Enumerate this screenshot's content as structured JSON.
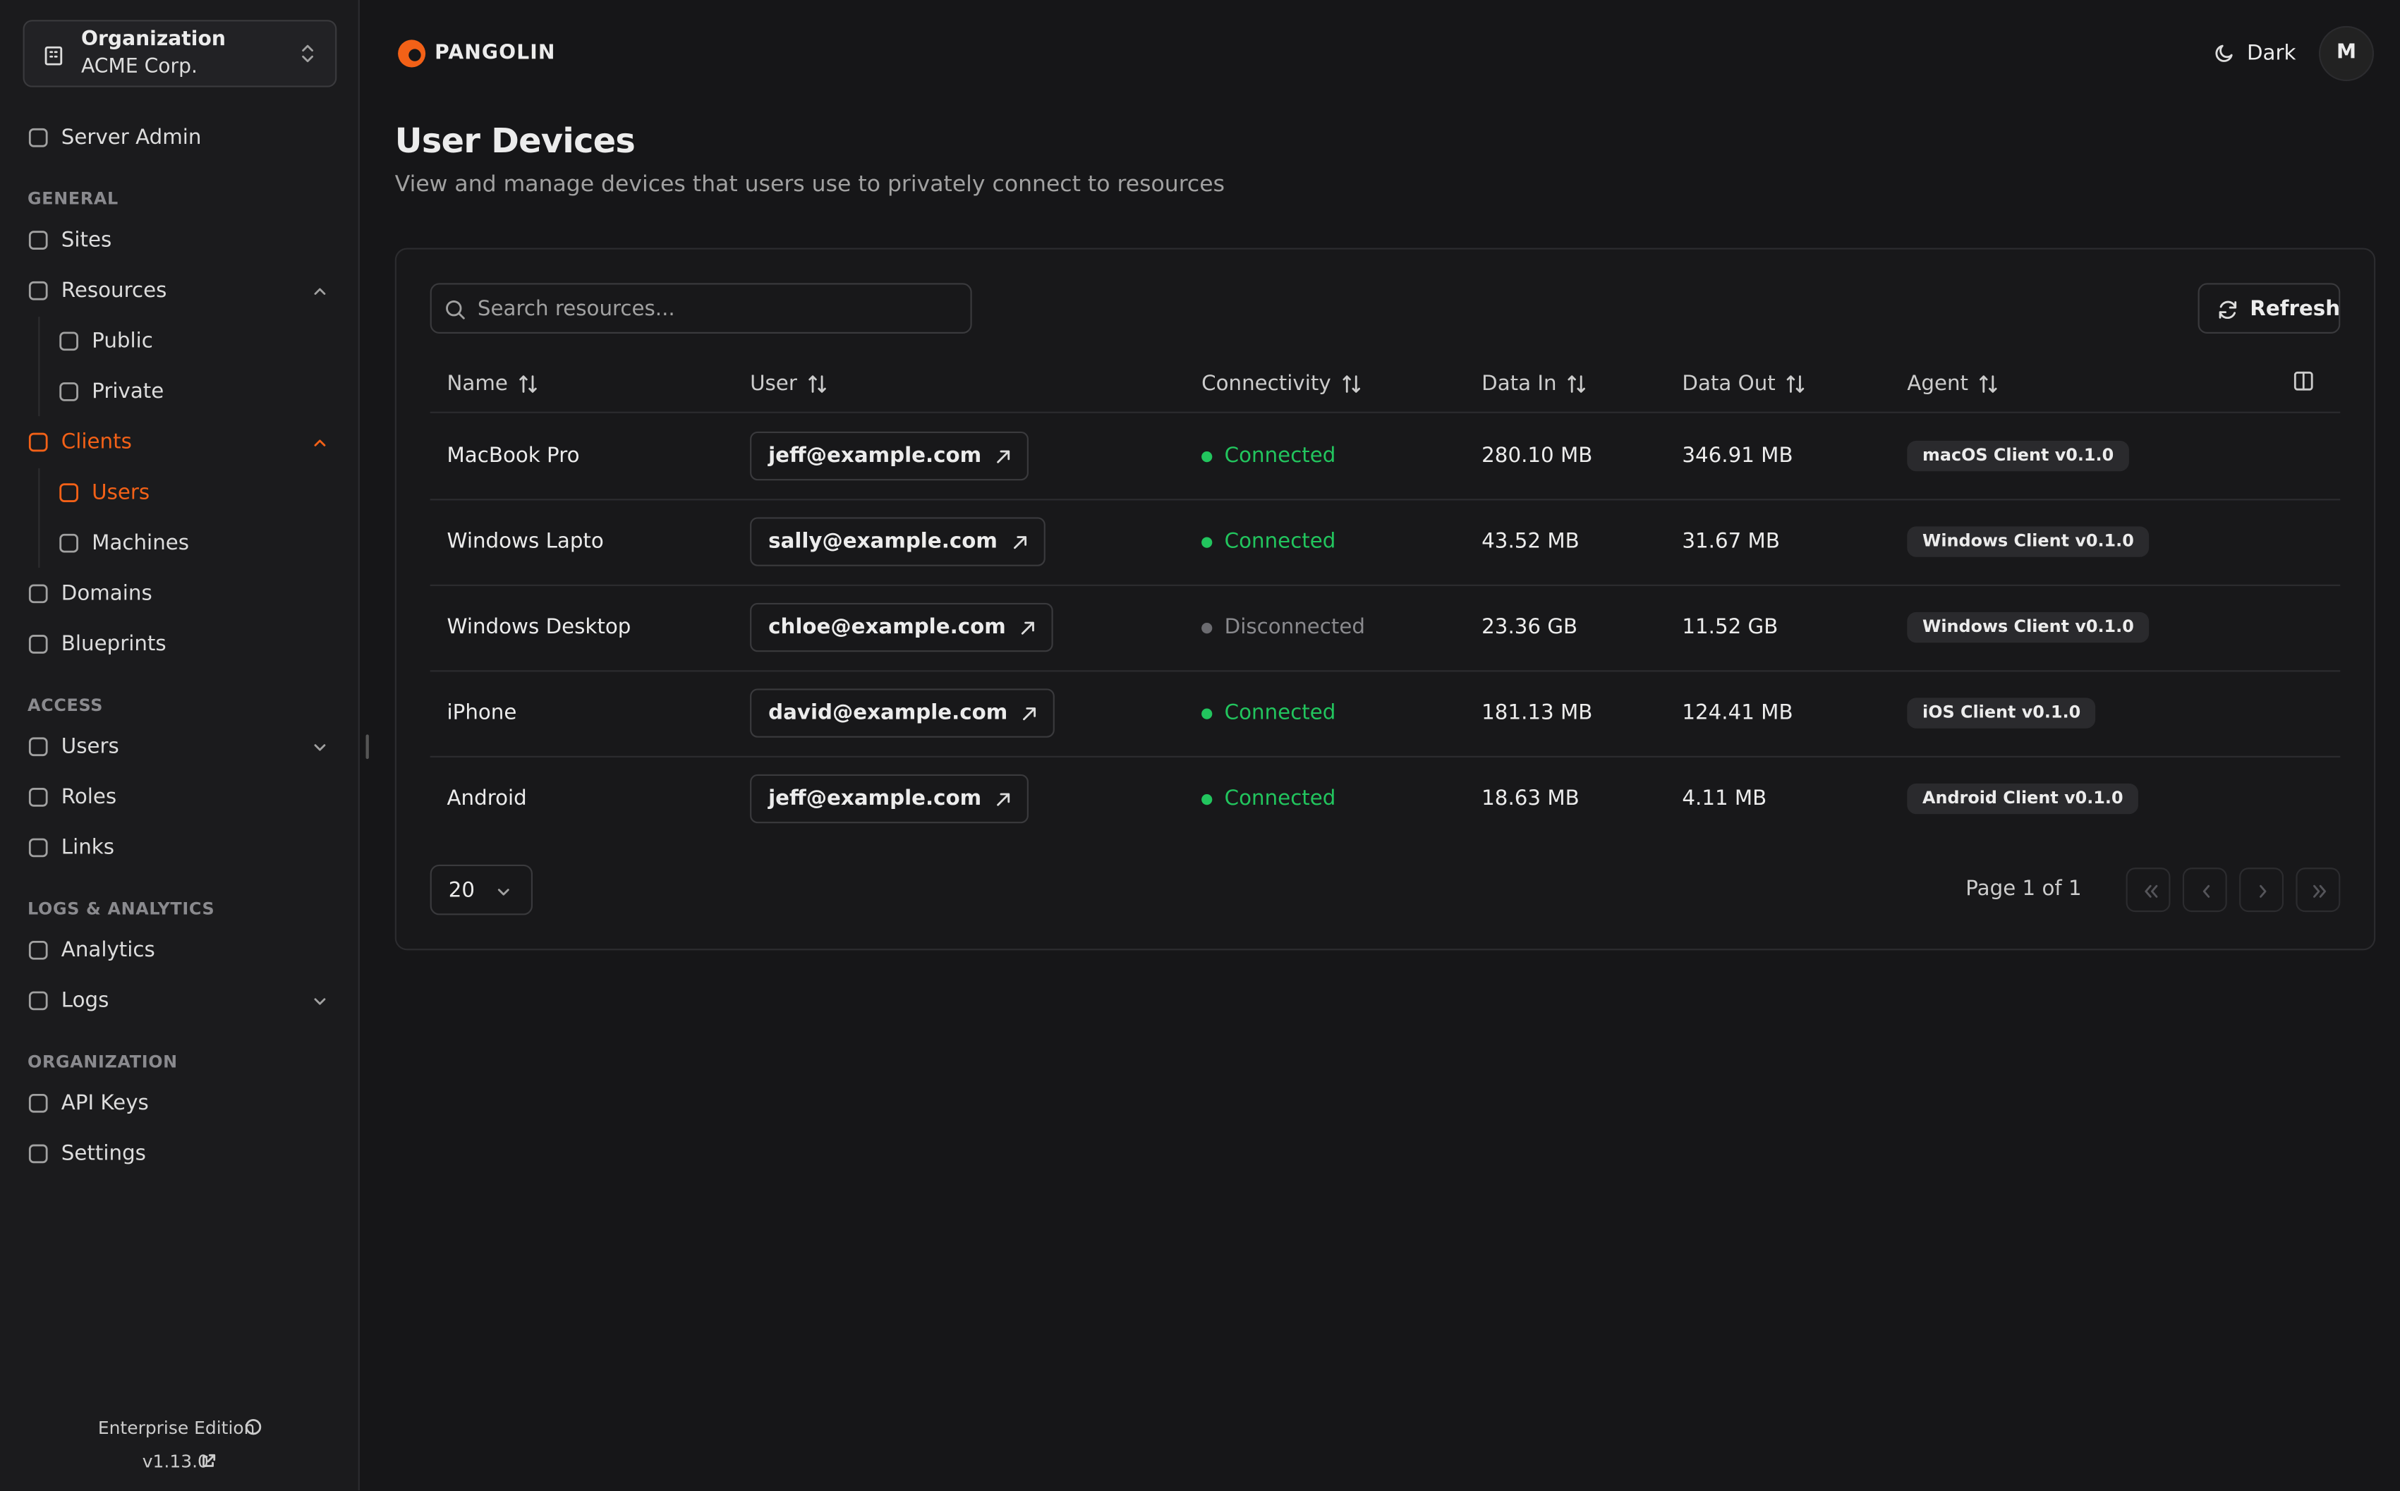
{
  "sidebar": {
    "org_label": "Organization",
    "org_name": "ACME Corp.",
    "server_admin": "Server Admin",
    "sections": [
      {
        "title": "GENERAL",
        "items": [
          {
            "label": "Sites"
          },
          {
            "label": "Resources",
            "children": [
              {
                "label": "Public"
              },
              {
                "label": "Private"
              }
            ]
          },
          {
            "label": "Clients",
            "active": true,
            "children": [
              {
                "label": "Users",
                "active": true
              },
              {
                "label": "Machines"
              }
            ]
          },
          {
            "label": "Domains"
          },
          {
            "label": "Blueprints"
          }
        ]
      },
      {
        "title": "ACCESS",
        "items": [
          {
            "label": "Users"
          },
          {
            "label": "Roles"
          },
          {
            "label": "Links"
          }
        ]
      },
      {
        "title": "LOGS & ANALYTICS",
        "items": [
          {
            "label": "Analytics"
          },
          {
            "label": "Logs"
          }
        ]
      },
      {
        "title": "ORGANIZATION",
        "items": [
          {
            "label": "API Keys"
          },
          {
            "label": "Settings"
          }
        ]
      }
    ],
    "edition": "Enterprise Edition",
    "version": "v1.13.0"
  },
  "header": {
    "brand": "PANGOLIN",
    "theme": "Dark",
    "avatar": "M"
  },
  "page": {
    "title": "User Devices",
    "subtitle": "View and manage devices that users use to privately connect to resources"
  },
  "table": {
    "search_placeholder": "Search resources...",
    "refresh": "Refresh",
    "columns": [
      "Name",
      "User",
      "Connectivity",
      "Data In",
      "Data Out",
      "Agent"
    ],
    "rows": [
      {
        "name": "MacBook Pro",
        "user": "jeff@example.com",
        "connectivity": "Connected",
        "connected": true,
        "data_in": "280.10 MB",
        "data_out": "346.91 MB",
        "agent": "macOS Client v0.1.0"
      },
      {
        "name": "Windows Lapto",
        "user": "sally@example.com",
        "connectivity": "Connected",
        "connected": true,
        "data_in": "43.52 MB",
        "data_out": "31.67 MB",
        "agent": "Windows Client v0.1.0"
      },
      {
        "name": "Windows Desktop",
        "user": "chloe@example.com",
        "connectivity": "Disconnected",
        "connected": false,
        "data_in": "23.36 GB",
        "data_out": "11.52 GB",
        "agent": "Windows Client v0.1.0"
      },
      {
        "name": "iPhone",
        "user": "david@example.com",
        "connectivity": "Connected",
        "connected": true,
        "data_in": "181.13 MB",
        "data_out": "124.41 MB",
        "agent": "iOS Client v0.1.0"
      },
      {
        "name": "Android",
        "user": "jeff@example.com",
        "connectivity": "Connected",
        "connected": true,
        "data_in": "18.63 MB",
        "data_out": "4.11 MB",
        "agent": "Android Client v0.1.0"
      }
    ]
  },
  "pagination": {
    "page_size": "20",
    "page_info": "Page 1 of 1"
  }
}
